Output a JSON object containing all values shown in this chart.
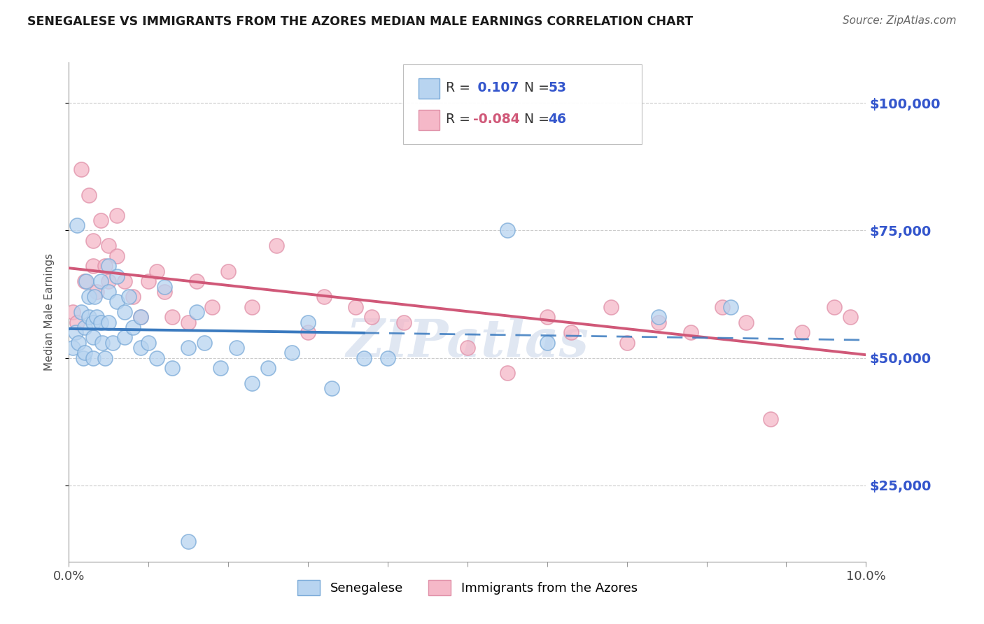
{
  "title": "SENEGALESE VS IMMIGRANTS FROM THE AZORES MEDIAN MALE EARNINGS CORRELATION CHART",
  "source": "Source: ZipAtlas.com",
  "ylabel": "Median Male Earnings",
  "y_ticks": [
    25000,
    50000,
    75000,
    100000
  ],
  "y_tick_labels": [
    "$25,000",
    "$50,000",
    "$75,000",
    "$100,000"
  ],
  "x_min": 0.0,
  "x_max": 0.1,
  "y_min": 10000,
  "y_max": 108000,
  "blue_color": "#b8d4f0",
  "blue_edge": "#7aaad8",
  "pink_color": "#f5b8c8",
  "pink_edge": "#e090a8",
  "trend_blue_color": "#3a7abf",
  "trend_pink_color": "#d05878",
  "R_blue": "0.107",
  "N_blue": "53",
  "R_pink": "-0.084",
  "N_pink": "46",
  "watermark": "ZIPatlas",
  "watermark_color": "#c8d4e8",
  "blue_x": [
    0.0005,
    0.0008,
    0.001,
    0.0012,
    0.0015,
    0.0018,
    0.002,
    0.002,
    0.0022,
    0.0025,
    0.0025,
    0.003,
    0.003,
    0.003,
    0.0032,
    0.0035,
    0.004,
    0.004,
    0.0042,
    0.0045,
    0.005,
    0.005,
    0.005,
    0.0055,
    0.006,
    0.006,
    0.007,
    0.007,
    0.0075,
    0.008,
    0.009,
    0.009,
    0.01,
    0.011,
    0.012,
    0.013,
    0.015,
    0.016,
    0.017,
    0.019,
    0.021,
    0.023,
    0.025,
    0.028,
    0.03,
    0.033,
    0.037,
    0.015,
    0.04,
    0.055,
    0.06,
    0.074,
    0.083
  ],
  "blue_y": [
    52000,
    55000,
    76000,
    53000,
    59000,
    50000,
    56000,
    51000,
    65000,
    62000,
    58000,
    57000,
    54000,
    50000,
    62000,
    58000,
    65000,
    57000,
    53000,
    50000,
    68000,
    63000,
    57000,
    53000,
    66000,
    61000,
    59000,
    54000,
    62000,
    56000,
    52000,
    58000,
    53000,
    50000,
    64000,
    48000,
    52000,
    59000,
    53000,
    48000,
    52000,
    45000,
    48000,
    51000,
    57000,
    44000,
    50000,
    14000,
    50000,
    75000,
    53000,
    58000,
    60000
  ],
  "pink_x": [
    0.0005,
    0.001,
    0.0015,
    0.002,
    0.0025,
    0.003,
    0.003,
    0.0035,
    0.004,
    0.0045,
    0.005,
    0.005,
    0.006,
    0.006,
    0.007,
    0.008,
    0.009,
    0.01,
    0.011,
    0.012,
    0.013,
    0.015,
    0.016,
    0.018,
    0.02,
    0.023,
    0.026,
    0.03,
    0.032,
    0.036,
    0.038,
    0.042,
    0.05,
    0.055,
    0.06,
    0.063,
    0.068,
    0.07,
    0.074,
    0.078,
    0.082,
    0.085,
    0.088,
    0.092,
    0.096,
    0.098
  ],
  "pink_y": [
    59000,
    57000,
    87000,
    65000,
    82000,
    73000,
    68000,
    63000,
    77000,
    68000,
    72000,
    65000,
    78000,
    70000,
    65000,
    62000,
    58000,
    65000,
    67000,
    63000,
    58000,
    57000,
    65000,
    60000,
    67000,
    60000,
    72000,
    55000,
    62000,
    60000,
    58000,
    57000,
    52000,
    47000,
    58000,
    55000,
    60000,
    53000,
    57000,
    55000,
    60000,
    57000,
    38000,
    55000,
    60000,
    58000
  ]
}
